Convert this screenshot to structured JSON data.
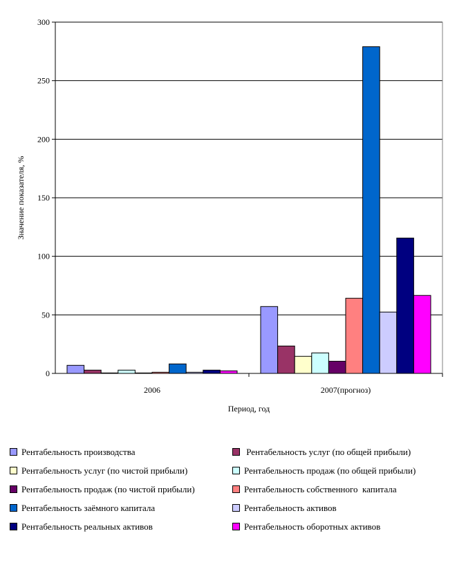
{
  "chart_data": {
    "type": "bar",
    "title": "",
    "xlabel": "Период, год",
    "ylabel": "Значение показателя, %",
    "ylim": [
      0,
      300
    ],
    "yticks": [
      0,
      50,
      100,
      150,
      200,
      250,
      300
    ],
    "categories": [
      "2006",
      "2007(прогноз)"
    ],
    "grid": true,
    "legend_position": "bottom",
    "series": [
      {
        "name": "Рентабельность производства",
        "color": "#9999FF",
        "values": [
          6.9,
          57.1
        ]
      },
      {
        "name": " Рентабельность услуг (по общей прибыли)",
        "color": "#993366",
        "values": [
          2.8,
          23.4
        ]
      },
      {
        "name": "Рентабельность услуг (по чистой прибыли)",
        "color": "#FFFFCC",
        "values": [
          0.4,
          14.6
        ]
      },
      {
        "name": "Рентабельность продаж (по общей прибыли)",
        "color": "#CCFFFF",
        "values": [
          2.8,
          17.5
        ]
      },
      {
        "name": "Рентабельность продаж (по чистой прибыли)",
        "color": "#660066",
        "values": [
          0.4,
          10.4
        ]
      },
      {
        "name": "Рентабельность собственного  капитала",
        "color": "#FF8080",
        "values": [
          1.0,
          64.2
        ]
      },
      {
        "name": "Рентабельность заёмного капитала",
        "color": "#0066CC",
        "values": [
          8.1,
          279
        ]
      },
      {
        "name": "Рентабельность активов",
        "color": "#CCCCFF",
        "values": [
          1.0,
          52.4
        ]
      },
      {
        "name": "Рентабельность реальных активов",
        "color": "#000080",
        "values": [
          2.8,
          115.6
        ]
      },
      {
        "name": "Рентабельность оборотных активов",
        "color": "#FF00FF",
        "values": [
          2.2,
          66.6
        ]
      }
    ]
  }
}
